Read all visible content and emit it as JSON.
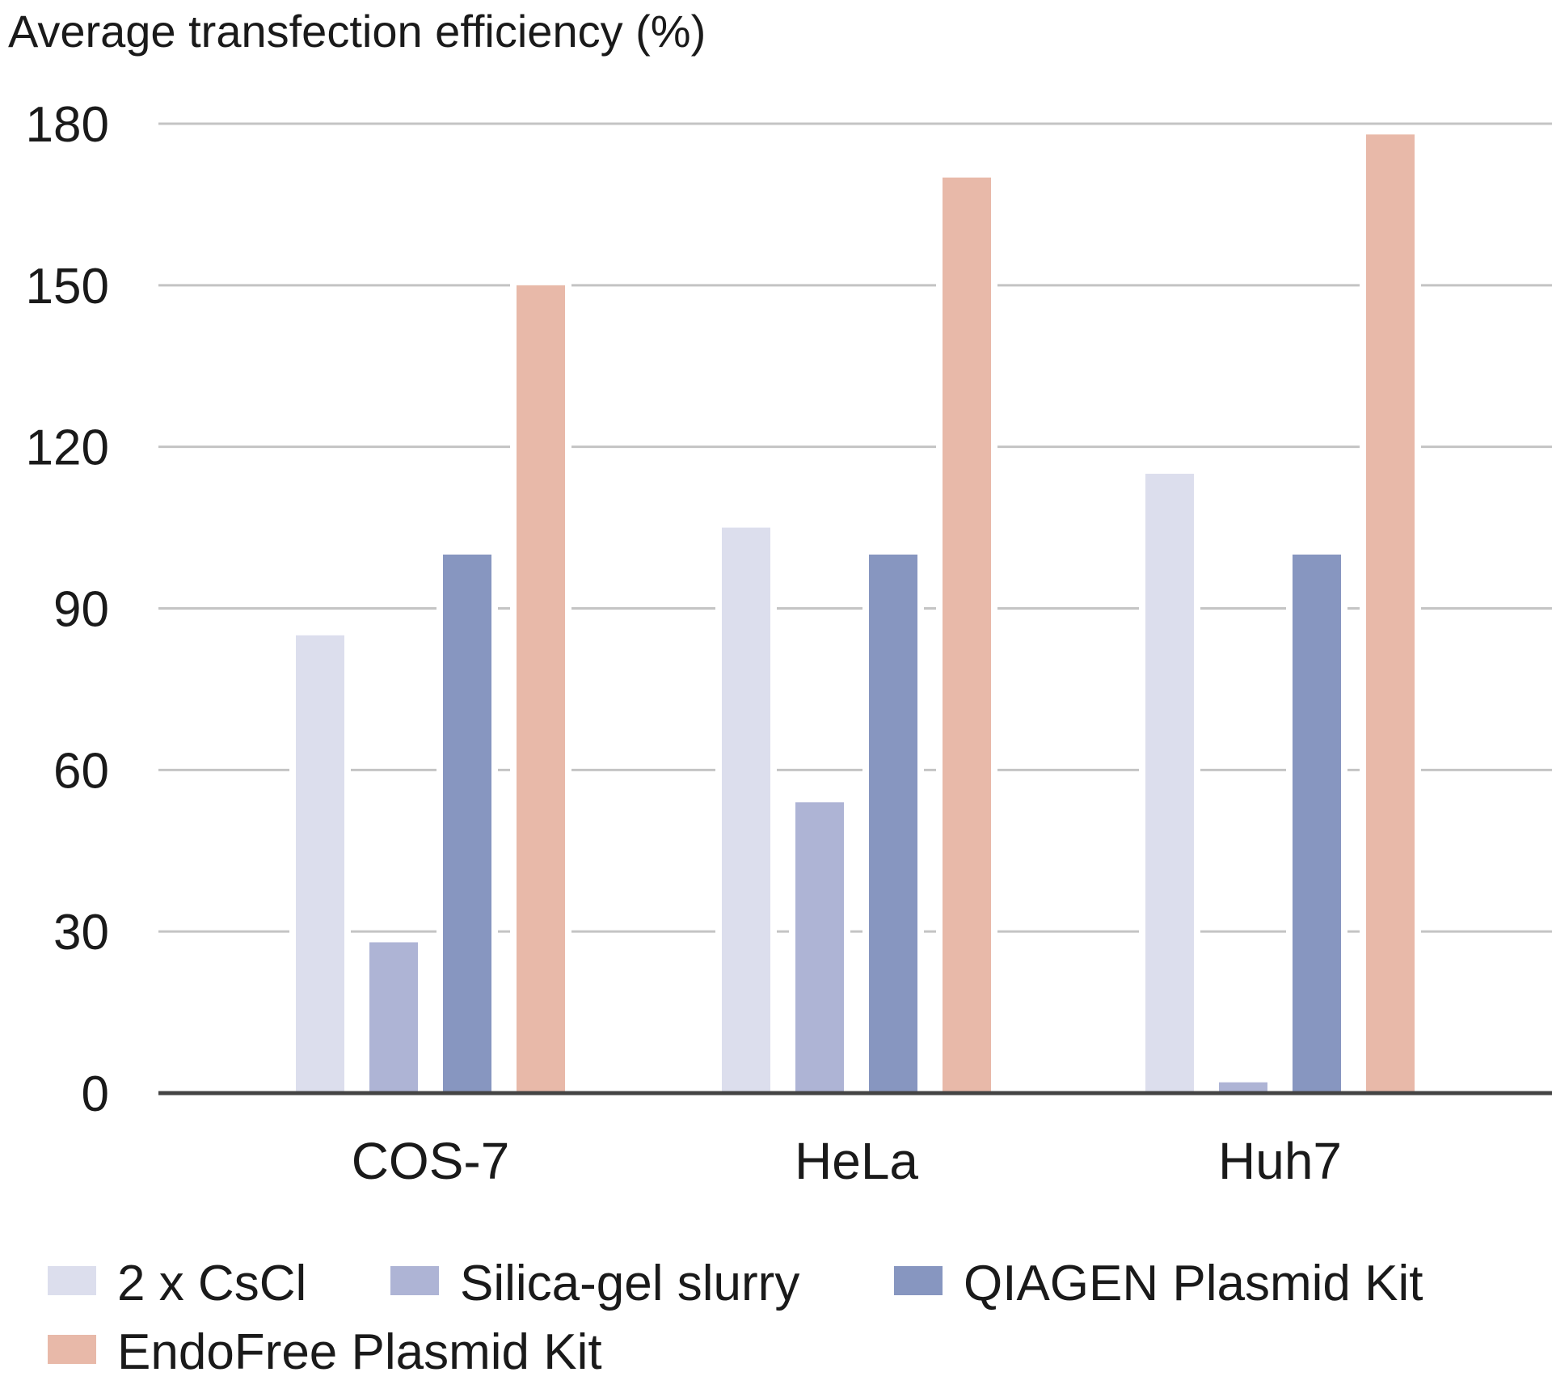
{
  "chart_data": {
    "type": "bar",
    "title": "",
    "ylabel": "Average transfection efficiency (%)",
    "xlabel": "",
    "categories": [
      "COS-7",
      "HeLa",
      "Huh7"
    ],
    "ylim": [
      0,
      180
    ],
    "yticks": [
      0,
      30,
      60,
      90,
      120,
      150,
      180
    ],
    "grid": true,
    "legend_position": "bottom",
    "series": [
      {
        "name": "2 x CsCl",
        "color": "#dcdeed",
        "values": [
          85,
          105,
          115
        ]
      },
      {
        "name": "Silica-gel slurry",
        "color": "#aeb4d5",
        "values": [
          28,
          54,
          2
        ]
      },
      {
        "name": "QIAGEN Plasmid Kit",
        "color": "#8796c0",
        "values": [
          100,
          100,
          100
        ]
      },
      {
        "name": "EndoFree Plasmid Kit",
        "color": "#e8b9a9",
        "values": [
          150,
          170,
          178
        ]
      }
    ]
  }
}
